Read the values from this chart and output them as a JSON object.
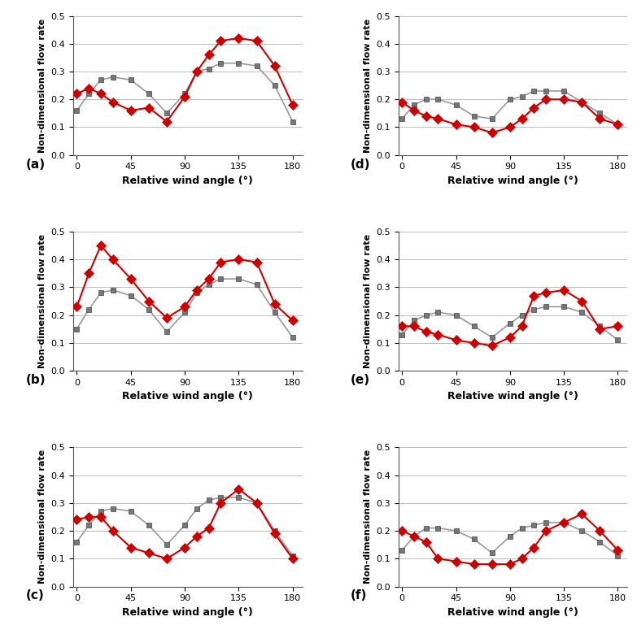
{
  "panels": [
    {
      "label": "(a)",
      "exp_x": [
        0,
        10,
        20,
        30,
        45,
        60,
        75,
        90,
        100,
        110,
        120,
        135,
        150,
        165,
        180
      ],
      "exp_y": [
        0.22,
        0.24,
        0.22,
        0.19,
        0.16,
        0.17,
        0.12,
        0.21,
        0.3,
        0.36,
        0.41,
        0.42,
        0.41,
        0.32,
        0.18
      ],
      "model_x": [
        0,
        10,
        20,
        30,
        45,
        60,
        75,
        90,
        100,
        110,
        120,
        135,
        150,
        165,
        180
      ],
      "model_y": [
        0.16,
        0.22,
        0.27,
        0.28,
        0.27,
        0.22,
        0.15,
        0.22,
        0.3,
        0.31,
        0.33,
        0.33,
        0.32,
        0.25,
        0.12
      ]
    },
    {
      "label": "(b)",
      "exp_x": [
        0,
        10,
        20,
        30,
        45,
        60,
        75,
        90,
        100,
        110,
        120,
        135,
        150,
        165,
        180
      ],
      "exp_y": [
        0.23,
        0.35,
        0.45,
        0.4,
        0.33,
        0.25,
        0.19,
        0.23,
        0.29,
        0.33,
        0.39,
        0.4,
        0.39,
        0.24,
        0.18
      ],
      "model_x": [
        0,
        10,
        20,
        30,
        45,
        60,
        75,
        90,
        100,
        110,
        120,
        135,
        150,
        165,
        180
      ],
      "model_y": [
        0.15,
        0.22,
        0.28,
        0.29,
        0.27,
        0.22,
        0.14,
        0.21,
        0.28,
        0.31,
        0.33,
        0.33,
        0.31,
        0.21,
        0.12
      ]
    },
    {
      "label": "(c)",
      "exp_x": [
        0,
        10,
        20,
        30,
        45,
        60,
        75,
        90,
        100,
        110,
        120,
        135,
        150,
        165,
        180
      ],
      "exp_y": [
        0.24,
        0.25,
        0.25,
        0.2,
        0.14,
        0.12,
        0.1,
        0.14,
        0.18,
        0.21,
        0.3,
        0.35,
        0.3,
        0.19,
        0.1
      ],
      "model_x": [
        0,
        10,
        20,
        30,
        45,
        60,
        75,
        90,
        100,
        110,
        120,
        135,
        150,
        165,
        180
      ],
      "model_y": [
        0.16,
        0.22,
        0.27,
        0.28,
        0.27,
        0.22,
        0.15,
        0.22,
        0.28,
        0.31,
        0.32,
        0.32,
        0.3,
        0.2,
        0.11
      ]
    },
    {
      "label": "(d)",
      "exp_x": [
        0,
        10,
        20,
        30,
        45,
        60,
        75,
        90,
        100,
        110,
        120,
        135,
        150,
        165,
        180
      ],
      "exp_y": [
        0.19,
        0.16,
        0.14,
        0.13,
        0.11,
        0.1,
        0.08,
        0.1,
        0.13,
        0.17,
        0.2,
        0.2,
        0.19,
        0.13,
        0.11
      ],
      "model_x": [
        0,
        10,
        20,
        30,
        45,
        60,
        75,
        90,
        100,
        110,
        120,
        135,
        150,
        165,
        180
      ],
      "model_y": [
        0.13,
        0.18,
        0.2,
        0.2,
        0.18,
        0.14,
        0.13,
        0.2,
        0.21,
        0.23,
        0.23,
        0.23,
        0.19,
        0.15,
        0.11
      ]
    },
    {
      "label": "(e)",
      "exp_x": [
        0,
        10,
        20,
        30,
        45,
        60,
        75,
        90,
        100,
        110,
        120,
        135,
        150,
        165,
        180
      ],
      "exp_y": [
        0.16,
        0.16,
        0.14,
        0.13,
        0.11,
        0.1,
        0.09,
        0.12,
        0.16,
        0.27,
        0.28,
        0.29,
        0.25,
        0.15,
        0.16
      ],
      "model_x": [
        0,
        10,
        20,
        30,
        45,
        60,
        75,
        90,
        100,
        110,
        120,
        135,
        150,
        165,
        180
      ],
      "model_y": [
        0.13,
        0.18,
        0.2,
        0.21,
        0.2,
        0.16,
        0.12,
        0.17,
        0.2,
        0.22,
        0.23,
        0.23,
        0.21,
        0.16,
        0.11
      ]
    },
    {
      "label": "(f)",
      "exp_x": [
        0,
        10,
        20,
        30,
        45,
        60,
        75,
        90,
        100,
        110,
        120,
        135,
        150,
        165,
        180
      ],
      "exp_y": [
        0.2,
        0.18,
        0.16,
        0.1,
        0.09,
        0.08,
        0.08,
        0.08,
        0.1,
        0.14,
        0.2,
        0.23,
        0.26,
        0.2,
        0.13
      ],
      "model_x": [
        0,
        10,
        20,
        30,
        45,
        60,
        75,
        90,
        100,
        110,
        120,
        135,
        150,
        165,
        180
      ],
      "model_y": [
        0.13,
        0.18,
        0.21,
        0.21,
        0.2,
        0.17,
        0.12,
        0.18,
        0.21,
        0.22,
        0.23,
        0.23,
        0.2,
        0.16,
        0.11
      ]
    }
  ],
  "exp_color": "#CC0000",
  "model_color": "#777777",
  "line_color_exp": "#CC0000",
  "line_color_model": "#999999",
  "ylabel": "Non-dimensional flow rate",
  "xlabel": "Relative wind angle (°)",
  "ylim": [
    0,
    0.5
  ],
  "yticks": [
    0,
    0.1,
    0.2,
    0.3,
    0.4,
    0.5
  ],
  "xticks": [
    0,
    45,
    90,
    135,
    180
  ]
}
